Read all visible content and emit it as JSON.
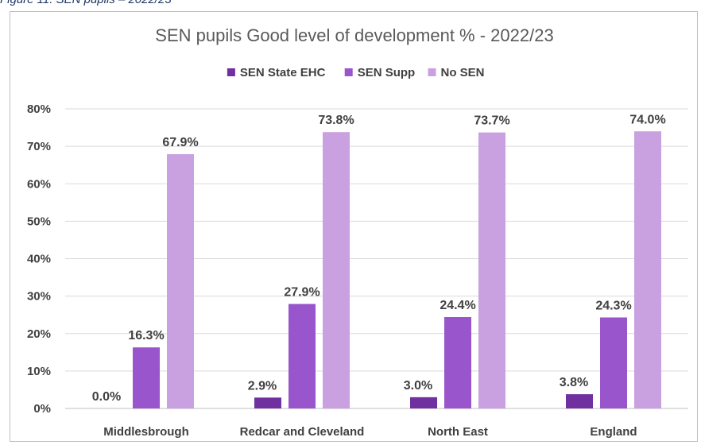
{
  "caption": "Figure 11: SEN pupils – 2022/23",
  "chart_data": {
    "type": "bar",
    "title": "SEN pupils Good level of development % - 2022/23",
    "categories": [
      "Middlesbrough",
      "Redcar and Cleveland",
      "North East",
      "England"
    ],
    "series": [
      {
        "name": "SEN State EHC",
        "color": "#7030a0",
        "values": [
          0.0,
          2.9,
          3.0,
          3.8
        ],
        "labels": [
          "0.0%",
          "2.9%",
          "3.0%",
          "3.8%"
        ]
      },
      {
        "name": "SEN Supp",
        "color": "#9955cc",
        "values": [
          16.3,
          27.9,
          24.4,
          24.3
        ],
        "labels": [
          "16.3%",
          "27.9%",
          "24.4%",
          "24.3%"
        ]
      },
      {
        "name": "No SEN",
        "color": "#c9a0e0",
        "values": [
          67.9,
          73.8,
          73.7,
          74.0
        ],
        "labels": [
          "67.9%",
          "73.8%",
          "73.7%",
          "74.0%"
        ]
      }
    ],
    "yticks": [
      "0%",
      "10%",
      "20%",
      "30%",
      "40%",
      "50%",
      "60%",
      "70%",
      "80%"
    ],
    "ylim": [
      0,
      80
    ],
    "grid": true,
    "legend": "top"
  }
}
